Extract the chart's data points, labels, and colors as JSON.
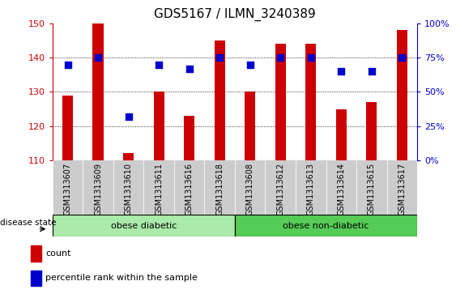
{
  "title": "GDS5167 / ILMN_3240389",
  "samples": [
    "GSM1313607",
    "GSM1313609",
    "GSM1313610",
    "GSM1313611",
    "GSM1313616",
    "GSM1313618",
    "GSM1313608",
    "GSM1313612",
    "GSM1313613",
    "GSM1313614",
    "GSM1313615",
    "GSM1313617"
  ],
  "counts": [
    129,
    150,
    112,
    130,
    123,
    145,
    130,
    144,
    144,
    125,
    127,
    148
  ],
  "percentile_ranks": [
    70,
    75,
    32,
    70,
    67,
    75,
    70,
    75,
    75,
    65,
    65,
    75
  ],
  "ylim_left": [
    110,
    150
  ],
  "ylim_right": [
    0,
    100
  ],
  "yticks_left": [
    110,
    120,
    130,
    140,
    150
  ],
  "yticks_right": [
    0,
    25,
    50,
    75,
    100
  ],
  "bar_color": "#cc0000",
  "dot_color": "#0000cc",
  "group1_label": "obese diabetic",
  "group2_label": "obese non-diabetic",
  "group1_count": 6,
  "group2_count": 6,
  "legend_count_label": "count",
  "legend_pct_label": "percentile rank within the sample",
  "disease_state_label": "disease state",
  "group_bg_color1": "#aaeaaa",
  "group_bg_color2": "#55cc55",
  "xtick_bg_color": "#cccccc",
  "bar_width": 0.35,
  "dot_size": 35,
  "plot_bg_color": "#ffffff",
  "fig_bg_color": "#ffffff"
}
